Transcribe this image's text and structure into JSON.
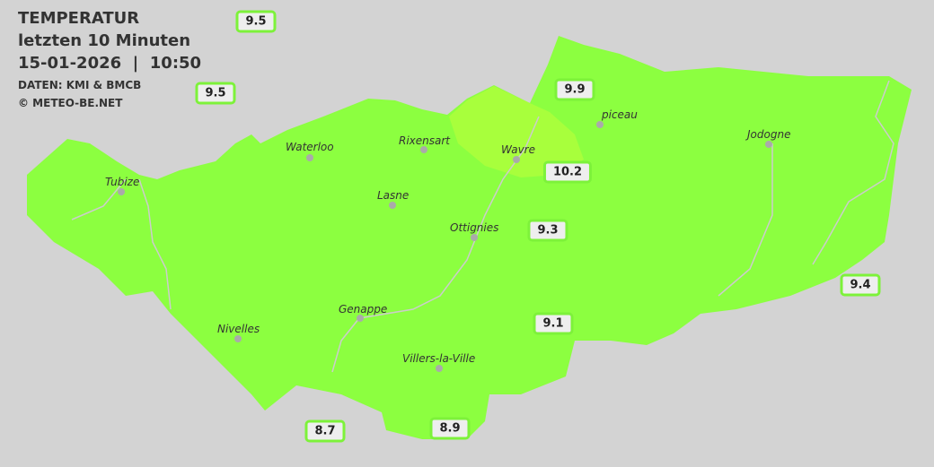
{
  "header": {
    "title": "TEMPERATUR",
    "subtitle": "letzten 10 Minuten",
    "datetime": "15-01-2026  |  10:50",
    "source": "DATEN: KMI & BMCB",
    "copyright": "© METEO-BE.NET"
  },
  "colors": {
    "background": "#d3d3d3",
    "zone_9_10": "#8cff40",
    "zone_10_11": "#a8ff3c",
    "label_border": "#7df23a"
  },
  "cities": [
    {
      "name": "Waterloo"
    },
    {
      "name": "Rixensart"
    },
    {
      "name": "Wavre"
    },
    {
      "name": "piceau"
    },
    {
      "name": "Jodogne"
    },
    {
      "name": "Tubize"
    },
    {
      "name": "Lasne"
    },
    {
      "name": "Ottignies"
    },
    {
      "name": "Genappe"
    },
    {
      "name": "Nivelles"
    },
    {
      "name": "Villers-la-Ville"
    }
  ],
  "readings": [
    "9.5",
    "9.5",
    "9.9",
    "10.2",
    "9.3",
    "9.4",
    "9.1",
    "8.7",
    "8.9"
  ]
}
